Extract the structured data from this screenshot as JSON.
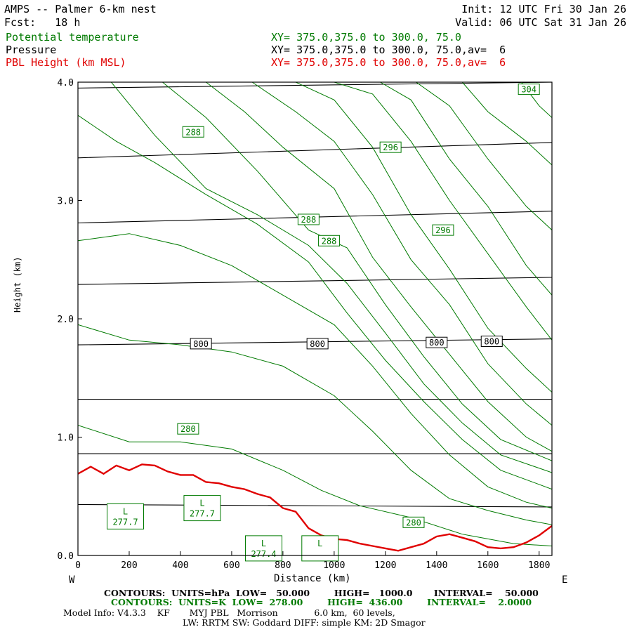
{
  "header": {
    "model_line": "AMPS -- Palmer 6-km nest",
    "fcst_line": "Fcst:   18 h",
    "init_line": "Init: 12 UTC Fri 30 Jan 26",
    "valid_line": "Valid: 06 UTC Sat 31 Jan 26",
    "field1": "Potential temperature",
    "field1_xy": "XY= 375.0,375.0 to 300.0, 75.0",
    "field2": "Pressure",
    "field2_xy": "XY= 375.0,375.0 to 300.0, 75.0,av=  6",
    "field3": "PBL Height (km MSL)",
    "field3_xy": "XY= 375.0,375.0 to 300.0, 75.0,av=  6"
  },
  "colors": {
    "potential_temperature": "#007a00",
    "pressure": "#000000",
    "pbl_height": "#e00000"
  },
  "chart_data": {
    "type": "line",
    "xlabel": "Distance (km)",
    "ylabel": "Height (km)",
    "xlim": [
      0,
      1850
    ],
    "ylim": [
      0,
      4.0
    ],
    "x_ticks": [
      "0",
      "200",
      "400",
      "600",
      "800",
      "1000",
      "1200",
      "1400",
      "1600",
      "1800"
    ],
    "x_tick_values": [
      0,
      200,
      400,
      600,
      800,
      1000,
      1200,
      1400,
      1600,
      1800
    ],
    "y_ticks": [
      "0.0",
      "1.0",
      "2.0",
      "3.0",
      "4.0"
    ],
    "y_tick_values": [
      0,
      1,
      2,
      3,
      4
    ],
    "left_end_label": "W",
    "right_end_label": "E",
    "pressure_contours": [
      {
        "x": [
          0,
          1850
        ],
        "y": [
          0.43,
          0.41
        ]
      },
      {
        "x": [
          0,
          1850
        ],
        "y": [
          0.86,
          0.86
        ]
      },
      {
        "x": [
          0,
          1850
        ],
        "y": [
          1.32,
          1.32
        ]
      },
      {
        "x": [
          0,
          1850
        ],
        "y": [
          1.78,
          1.83
        ]
      },
      {
        "x": [
          0,
          1850
        ],
        "y": [
          2.29,
          2.35
        ]
      },
      {
        "x": [
          0,
          1850
        ],
        "y": [
          2.81,
          2.91
        ]
      },
      {
        "x": [
          0,
          1850
        ],
        "y": [
          3.36,
          3.49
        ]
      },
      {
        "x": [
          0,
          1850
        ],
        "y": [
          3.95,
          4.0
        ]
      }
    ],
    "pressure_labels": [
      {
        "text": "800",
        "x": 480,
        "y": 1.79
      },
      {
        "text": "800",
        "x": 935,
        "y": 1.79
      },
      {
        "text": "800",
        "x": 1400,
        "y": 1.8
      },
      {
        "text": "800",
        "x": 1615,
        "y": 1.81
      }
    ],
    "theta_contours": [
      {
        "x": [
          0,
          200,
          400,
          600,
          800,
          950,
          1100,
          1300,
          1500,
          1700,
          1850
        ],
        "y": [
          1.1,
          0.96,
          0.96,
          0.9,
          0.72,
          0.55,
          0.42,
          0.32,
          0.18,
          0.1,
          0.08
        ]
      },
      {
        "x": [
          0,
          200,
          400,
          600,
          800,
          1000,
          1150,
          1300,
          1450,
          1600,
          1750,
          1850
        ],
        "y": [
          1.95,
          1.82,
          1.78,
          1.72,
          1.6,
          1.35,
          1.05,
          0.72,
          0.48,
          0.38,
          0.3,
          0.26
        ]
      },
      {
        "x": [
          0,
          200,
          400,
          600,
          800,
          1000,
          1150,
          1300,
          1450,
          1600,
          1750,
          1850
        ],
        "y": [
          2.66,
          2.72,
          2.62,
          2.45,
          2.2,
          1.95,
          1.6,
          1.2,
          0.85,
          0.58,
          0.45,
          0.4
        ]
      },
      {
        "x": [
          0,
          150,
          300,
          500,
          700,
          900,
          1050,
          1200,
          1350,
          1500,
          1650,
          1850
        ],
        "y": [
          3.72,
          3.5,
          3.32,
          3.05,
          2.8,
          2.48,
          2.05,
          1.65,
          1.3,
          0.98,
          0.72,
          0.56
        ]
      },
      {
        "x": [
          130,
          300,
          500,
          700,
          900,
          1050,
          1200,
          1350,
          1500,
          1650,
          1850
        ],
        "y": [
          4.0,
          3.55,
          3.1,
          2.88,
          2.62,
          2.3,
          1.88,
          1.45,
          1.12,
          0.85,
          0.7
        ]
      },
      {
        "x": [
          330,
          500,
          700,
          900,
          1050,
          1200,
          1350,
          1500,
          1650,
          1850
        ],
        "y": [
          4.0,
          3.7,
          3.25,
          2.75,
          2.6,
          2.12,
          1.68,
          1.28,
          0.98,
          0.8
        ]
      },
      {
        "x": [
          500,
          650,
          800,
          1000,
          1150,
          1300,
          1450,
          1600,
          1750,
          1850
        ],
        "y": [
          4.0,
          3.75,
          3.45,
          3.1,
          2.52,
          2.1,
          1.7,
          1.3,
          1.0,
          0.88
        ]
      },
      {
        "x": [
          680,
          850,
          1000,
          1150,
          1300,
          1450,
          1600,
          1750,
          1850
        ],
        "y": [
          4.0,
          3.75,
          3.5,
          3.05,
          2.5,
          2.12,
          1.62,
          1.28,
          1.1
        ]
      },
      {
        "x": [
          850,
          1000,
          1150,
          1300,
          1450,
          1600,
          1750,
          1850
        ],
        "y": [
          4.0,
          3.85,
          3.45,
          2.88,
          2.42,
          1.92,
          1.58,
          1.38
        ]
      },
      {
        "x": [
          1000,
          1150,
          1300,
          1450,
          1600,
          1750,
          1850
        ],
        "y": [
          4.0,
          3.9,
          3.5,
          3.0,
          2.55,
          2.1,
          1.82
        ]
      },
      {
        "x": [
          1180,
          1300,
          1450,
          1600,
          1750,
          1850
        ],
        "y": [
          4.0,
          3.85,
          3.35,
          2.95,
          2.45,
          2.2
        ]
      },
      {
        "x": [
          1320,
          1450,
          1600,
          1750,
          1850
        ],
        "y": [
          4.0,
          3.8,
          3.35,
          2.95,
          2.75
        ]
      },
      {
        "x": [
          1500,
          1600,
          1750,
          1850
        ],
        "y": [
          4.0,
          3.75,
          3.5,
          3.3
        ]
      },
      {
        "x": [
          1730,
          1800,
          1850
        ],
        "y": [
          4.0,
          3.8,
          3.7
        ]
      }
    ],
    "theta_labels": [
      {
        "text": "288",
        "x": 450,
        "y": 3.58
      },
      {
        "text": "296",
        "x": 1220,
        "y": 3.45
      },
      {
        "text": "304",
        "x": 1760,
        "y": 3.94
      },
      {
        "text": "288",
        "x": 900,
        "y": 2.84
      },
      {
        "text": "288",
        "x": 980,
        "y": 2.66
      },
      {
        "text": "296",
        "x": 1425,
        "y": 2.75
      },
      {
        "text": "280",
        "x": 430,
        "y": 1.07
      },
      {
        "text": "280",
        "x": 1310,
        "y": 0.28
      }
    ],
    "lows": [
      {
        "letter": "L",
        "value": "277.7",
        "x": 185,
        "y": 0.33
      },
      {
        "letter": "L",
        "value": "277.7",
        "x": 485,
        "y": 0.4
      },
      {
        "letter": "L",
        "value": "277.4",
        "x": 725,
        "y": 0.06
      },
      {
        "letter": "L",
        "value": "",
        "x": 945,
        "y": 0.06
      }
    ],
    "pbl_height": {
      "x": [
        0,
        50,
        100,
        150,
        200,
        250,
        300,
        350,
        400,
        450,
        500,
        550,
        600,
        650,
        700,
        750,
        800,
        850,
        900,
        950,
        1000,
        1050,
        1100,
        1150,
        1200,
        1250,
        1300,
        1350,
        1400,
        1450,
        1500,
        1550,
        1600,
        1650,
        1700,
        1750,
        1800,
        1850
      ],
      "y": [
        0.69,
        0.75,
        0.69,
        0.76,
        0.72,
        0.77,
        0.76,
        0.71,
        0.68,
        0.68,
        0.62,
        0.61,
        0.58,
        0.56,
        0.52,
        0.49,
        0.4,
        0.37,
        0.23,
        0.17,
        0.14,
        0.13,
        0.1,
        0.08,
        0.06,
        0.04,
        0.07,
        0.1,
        0.16,
        0.18,
        0.15,
        0.12,
        0.07,
        0.06,
        0.07,
        0.11,
        0.17,
        0.25
      ]
    }
  },
  "footer": {
    "line1": "CONTOURS:  UNITS=hPa  LOW=   50.000        HIGH=   1000.0       INTERVAL=    50.000",
    "line2": "CONTOURS:  UNITS=K  LOW=  278.00        HIGH=  436.00        INTERVAL=    2.0000",
    "line3": "Model Info: V4.3.3    KF       MYJ PBL   Morrison             6.0 km,  60 levels,",
    "line4": "LW: RRTM SW: Goddard DIFF: simple KM: 2D Smagor"
  }
}
